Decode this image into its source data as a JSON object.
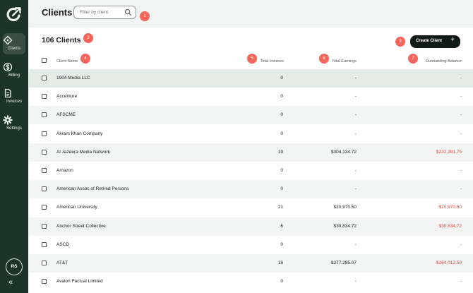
{
  "sidebar": {
    "items": [
      {
        "label": "Clients",
        "icon": "tag-icon"
      },
      {
        "label": "Billing",
        "icon": "dollar-icon"
      },
      {
        "label": "Invoices",
        "icon": "document-icon"
      },
      {
        "label": "Settings",
        "icon": "gear-icon"
      }
    ],
    "avatar": "RS",
    "collapse": "«"
  },
  "header": {
    "title": "Clients",
    "search_placeholder": "Filter by client"
  },
  "markers": [
    "1",
    "2",
    "3",
    "4",
    "5",
    "6",
    "7"
  ],
  "main": {
    "count_title": "106 Clients",
    "create_label": "Create Client",
    "create_plus": "+",
    "columns": [
      "Client Name",
      "Total Invoices",
      "Total Earnings",
      "Outstanding Balance"
    ],
    "rows": [
      {
        "name": "1904 Media LLC",
        "invoices": "0",
        "earnings": "-",
        "balance": "-"
      },
      {
        "name": "Accenture",
        "invoices": "0",
        "earnings": "-",
        "balance": "-"
      },
      {
        "name": "AFSCME",
        "invoices": "0",
        "earnings": "-",
        "balance": "-"
      },
      {
        "name": "Akram Khan Company",
        "invoices": "0",
        "earnings": "-",
        "balance": "-"
      },
      {
        "name": "Al Jazeera Media Network",
        "invoices": "19",
        "earnings": "$304,134.72",
        "balance": "$232,281.75"
      },
      {
        "name": "Amazon",
        "invoices": "0",
        "earnings": "-",
        "balance": "-"
      },
      {
        "name": "American Assoc of Retired Persons",
        "invoices": "0",
        "earnings": "-",
        "balance": "-"
      },
      {
        "name": "American University",
        "invoices": "21",
        "earnings": "$20,970.50",
        "balance": "$20,970.50"
      },
      {
        "name": "Anchor Street Collective",
        "invoices": "6",
        "earnings": "$30,834.72",
        "balance": "$30,834.72"
      },
      {
        "name": "ASCD",
        "invoices": "0",
        "earnings": "-",
        "balance": "-"
      },
      {
        "name": "AT&T",
        "invoices": "18",
        "earnings": "$277,285.07",
        "balance": "$264,012.59"
      },
      {
        "name": "Avalon Factual Limited",
        "invoices": "0",
        "earnings": "-",
        "balance": "-"
      }
    ]
  },
  "colors": {
    "sidebar_bg": "#1c3329",
    "badge": "#f4655b",
    "outstanding": "#e9443a",
    "highlight_row": "#e3ece7",
    "button": "#101a16"
  }
}
